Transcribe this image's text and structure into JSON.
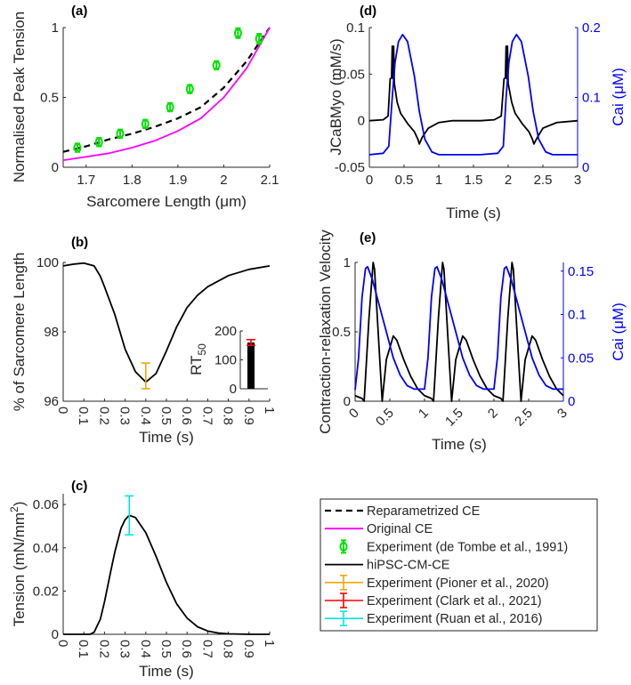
{
  "chart_data": [
    {
      "panel": "(a)",
      "type": "line",
      "xlabel": "Sarcomere Length (μm)",
      "ylabel": "Normalised Peak Tension",
      "xlim": [
        1.65,
        2.1
      ],
      "ylim": [
        0,
        1
      ],
      "xticks": [
        "1.7",
        "1.8",
        "1.9",
        "2",
        "2.1"
      ],
      "xtickvals": [
        1.7,
        1.8,
        1.9,
        2.0,
        2.1
      ],
      "yticks": [
        "0",
        "0.5",
        "1"
      ],
      "ytickvals": [
        0,
        0.5,
        1
      ],
      "series": [
        {
          "name": "Reparametrized CE",
          "color": "#000000",
          "style": "dashed",
          "x": [
            1.65,
            1.7,
            1.75,
            1.8,
            1.85,
            1.9,
            1.95,
            2.0,
            2.05,
            2.1
          ],
          "y": [
            0.11,
            0.15,
            0.2,
            0.24,
            0.29,
            0.35,
            0.43,
            0.57,
            0.76,
            1.0
          ]
        },
        {
          "name": "Original CE",
          "color": "#ff00ff",
          "style": "solid",
          "x": [
            1.65,
            1.7,
            1.75,
            1.8,
            1.85,
            1.9,
            1.95,
            2.0,
            2.05,
            2.1
          ],
          "y": [
            0.05,
            0.075,
            0.1,
            0.14,
            0.19,
            0.26,
            0.35,
            0.5,
            0.71,
            1.0
          ]
        },
        {
          "name": "Experiment (de Tombe et al., 1991)",
          "color": "#00e000",
          "style": "marker",
          "x": [
            1.681,
            1.728,
            1.774,
            1.829,
            1.883,
            1.926,
            1.984,
            2.031,
            2.077
          ],
          "y": [
            0.14,
            0.18,
            0.24,
            0.31,
            0.43,
            0.56,
            0.73,
            0.96,
            0.92
          ],
          "err": [
            0.03,
            0.03,
            0.03,
            0.03,
            0.03,
            0.03,
            0.03,
            0.035,
            0.035
          ]
        }
      ]
    },
    {
      "panel": "(b)",
      "type": "line",
      "xlabel": "Time (s)",
      "ylabel": "% of Sarcomere Length",
      "xlim": [
        0,
        1
      ],
      "ylim": [
        96,
        100
      ],
      "xticks": [
        "0",
        "0.1",
        "0.2",
        "0.3",
        "0.4",
        "0.5",
        "0.6",
        "0.7",
        "0.8",
        "0.9",
        "1"
      ],
      "xtickvals": [
        0,
        0.1,
        0.2,
        0.3,
        0.4,
        0.5,
        0.6,
        0.7,
        0.8,
        0.9,
        1
      ],
      "yticks": [
        "96",
        "98",
        "100"
      ],
      "ytickvals": [
        96,
        98,
        100
      ],
      "series": [
        {
          "name": "hiPSC-CM-CE",
          "color": "#000000",
          "style": "solid",
          "x": [
            0,
            0.05,
            0.1,
            0.15,
            0.18,
            0.2,
            0.25,
            0.3,
            0.35,
            0.4,
            0.45,
            0.5,
            0.55,
            0.6,
            0.65,
            0.7,
            0.8,
            0.9,
            1.0
          ],
          "y": [
            99.9,
            99.95,
            99.98,
            99.9,
            99.6,
            99.3,
            98.5,
            97.5,
            96.85,
            96.55,
            96.8,
            97.45,
            98.15,
            98.7,
            99.05,
            99.3,
            99.62,
            99.8,
            99.9
          ]
        },
        {
          "name": "Experiment (Pioner et al., 2020)",
          "color": "#f0a800",
          "style": "errorbar",
          "x": [
            0.4
          ],
          "y": [
            96.7
          ],
          "lo": [
            96.36
          ],
          "hi": [
            97.1
          ]
        }
      ],
      "inset": {
        "type": "bar",
        "ylabel": "RT",
        "ylabel_sub": "50",
        "ylim": [
          0,
          200
        ],
        "yticks": [
          "0",
          "100",
          "200"
        ],
        "ytickvals": [
          0,
          100,
          200
        ],
        "value": 160,
        "lo": 150,
        "hi": 170,
        "bar_color": "#000000",
        "err_color": "#ff0000"
      }
    },
    {
      "panel": "(c)",
      "type": "line",
      "xlabel": "Time (s)",
      "ylabel": "Tension (mN/mm",
      "ylabel_sup": "2",
      "ylabel_end": ")",
      "xlim": [
        0,
        1
      ],
      "ylim": [
        0,
        0.065
      ],
      "xticks": [
        "0",
        "0.1",
        "0.2",
        "0.3",
        "0.4",
        "0.5",
        "0.6",
        "0.7",
        "0.8",
        "0.9",
        "1"
      ],
      "xtickvals": [
        0,
        0.1,
        0.2,
        0.3,
        0.4,
        0.5,
        0.6,
        0.7,
        0.8,
        0.9,
        1
      ],
      "yticks": [
        "0",
        "0.02",
        "0.04",
        "0.06"
      ],
      "ytickvals": [
        0,
        0.02,
        0.04,
        0.06
      ],
      "series": [
        {
          "name": "hiPSC-CM-CE",
          "color": "#000000",
          "style": "solid",
          "x": [
            0,
            0.13,
            0.15,
            0.18,
            0.2,
            0.23,
            0.25,
            0.28,
            0.3,
            0.32,
            0.35,
            0.4,
            0.45,
            0.5,
            0.55,
            0.6,
            0.65,
            0.7,
            0.75,
            0.8,
            0.9,
            1.0
          ],
          "y": [
            0,
            0,
            0.001,
            0.007,
            0.015,
            0.029,
            0.038,
            0.049,
            0.053,
            0.055,
            0.054,
            0.047,
            0.036,
            0.024,
            0.014,
            0.0075,
            0.0035,
            0.0015,
            0.0006,
            0.0002,
            0,
            0
          ]
        },
        {
          "name": "Experiment (Ruan et al., 2016)",
          "color": "#00e8e8",
          "style": "errorbar",
          "x": [
            0.32
          ],
          "y": [
            0.055
          ],
          "lo": [
            0.046
          ],
          "hi": [
            0.064
          ]
        }
      ]
    },
    {
      "panel": "(d)",
      "type": "line",
      "xlabel": "Time (s)",
      "ylabel": "JCaBMyo (mM/s)",
      "ylabel_right": "Cai (μM)",
      "xlim": [
        0,
        3
      ],
      "ylim": [
        -0.05,
        0.1
      ],
      "ylim_right": [
        0,
        0.2
      ],
      "xticks": [
        "0",
        "0.5",
        "1",
        "1.5",
        "2",
        "2.5",
        "3"
      ],
      "xtickvals": [
        0,
        0.5,
        1,
        1.5,
        2,
        2.5,
        3
      ],
      "yticks": [
        "-0.05",
        "0",
        "0.05",
        "0.1"
      ],
      "ytickvals": [
        -0.05,
        0,
        0.05,
        0.1
      ],
      "yticks_right": [
        "0",
        "0.1",
        "0.2"
      ],
      "ytickvals_right": [
        0,
        0.1,
        0.2
      ],
      "series": [
        {
          "name": "JCaBMyo",
          "color": "#000000",
          "style": "solid",
          "axis": "left",
          "x": [
            0,
            0.2,
            0.27,
            0.3,
            0.32,
            0.33,
            0.34,
            0.35,
            0.36,
            0.4,
            0.45,
            0.55,
            0.65,
            0.7,
            0.72,
            0.76,
            0.85,
            1.0,
            1.2,
            1.6,
            1.8,
            1.9,
            1.94,
            1.96,
            1.97,
            1.98,
            1.99,
            2.0,
            2.05,
            2.1,
            2.2,
            2.3,
            2.35,
            2.37,
            2.42,
            2.5,
            2.7,
            3.0
          ],
          "y": [
            0,
            0.001,
            0.005,
            0.045,
            0.046,
            0.08,
            0.045,
            0.08,
            0.04,
            0.02,
            0.008,
            -0.003,
            -0.012,
            -0.02,
            -0.025,
            -0.018,
            -0.008,
            -0.002,
            0,
            0,
            0.001,
            0.005,
            0.045,
            0.046,
            0.08,
            0.045,
            0.08,
            0.04,
            0.02,
            0.008,
            -0.003,
            -0.012,
            -0.02,
            -0.025,
            -0.018,
            -0.008,
            -0.002,
            0
          ]
        },
        {
          "name": "Cai",
          "color": "#0000ff",
          "style": "solid",
          "axis": "right",
          "x": [
            0,
            0.2,
            0.28,
            0.33,
            0.37,
            0.42,
            0.48,
            0.55,
            0.65,
            0.72,
            0.8,
            0.9,
            1.0,
            1.6,
            1.85,
            1.93,
            1.97,
            2.01,
            2.06,
            2.12,
            2.19,
            2.29,
            2.36,
            2.44,
            2.54,
            2.64,
            3.0
          ],
          "y": [
            0.018,
            0.02,
            0.03,
            0.1,
            0.15,
            0.18,
            0.19,
            0.18,
            0.13,
            0.08,
            0.04,
            0.022,
            0.018,
            0.018,
            0.02,
            0.03,
            0.1,
            0.15,
            0.18,
            0.19,
            0.18,
            0.13,
            0.08,
            0.04,
            0.022,
            0.018,
            0.018
          ]
        }
      ]
    },
    {
      "panel": "(e)",
      "type": "line",
      "xlabel": "Time (s)",
      "ylabel": "Contraction-relaxation Velocity",
      "ylabel_right": "Cai (μM)",
      "xlim": [
        0,
        3
      ],
      "ylim": [
        0,
        1
      ],
      "ylim_right": [
        0,
        0.16
      ],
      "xticks": [
        "0",
        "0.5",
        "1",
        "1.5",
        "2",
        "2.5",
        "3"
      ],
      "xtickvals": [
        0,
        0.5,
        1,
        1.5,
        2,
        2.5,
        3
      ],
      "yticks": [
        "0",
        "0.5",
        "1"
      ],
      "ytickvals": [
        0,
        0.5,
        1
      ],
      "yticks_right": [
        "0",
        "0.05",
        "0.1",
        "0.15"
      ],
      "ytickvals_right": [
        0,
        0.05,
        0.1,
        0.15
      ],
      "series": [
        {
          "name": "Velocity",
          "color": "#000000",
          "style": "solid",
          "axis": "left",
          "x": [
            0,
            0.1,
            0.13,
            0.2,
            0.26,
            0.28,
            0.39,
            0.45,
            0.55,
            0.6,
            0.7,
            0.8,
            0.9,
            1.0,
            1.1,
            1.13,
            1.2,
            1.26,
            1.28,
            1.39,
            1.45,
            1.55,
            1.6,
            1.7,
            1.8,
            1.9,
            2.0,
            2.1,
            2.13,
            2.2,
            2.26,
            2.28,
            2.39,
            2.45,
            2.55,
            2.6,
            2.7,
            2.8,
            2.9,
            3.0
          ],
          "y": [
            0.04,
            0.02,
            0,
            0.6,
            1,
            0.95,
            0,
            0.3,
            0.47,
            0.44,
            0.3,
            0.18,
            0.09,
            0.04,
            0.02,
            0,
            0.6,
            1,
            0.95,
            0,
            0.3,
            0.47,
            0.44,
            0.3,
            0.18,
            0.09,
            0.04,
            0.02,
            0,
            0.6,
            1,
            0.95,
            0,
            0.3,
            0.47,
            0.44,
            0.3,
            0.18,
            0.09,
            0.04
          ]
        },
        {
          "name": "Cai",
          "color": "#0000ff",
          "style": "solid",
          "axis": "right",
          "x": [
            0,
            0.05,
            0.1,
            0.15,
            0.18,
            0.25,
            0.35,
            0.45,
            0.55,
            0.65,
            0.75,
            0.85,
            1.0,
            1.05,
            1.1,
            1.15,
            1.18,
            1.25,
            1.35,
            1.45,
            1.55,
            1.65,
            1.75,
            1.85,
            2.0,
            2.05,
            2.1,
            2.15,
            2.18,
            2.25,
            2.35,
            2.45,
            2.55,
            2.65,
            2.75,
            2.85,
            3.0
          ],
          "y": [
            0.013,
            0.05,
            0.12,
            0.153,
            0.155,
            0.14,
            0.11,
            0.08,
            0.05,
            0.03,
            0.018,
            0.014,
            0.014,
            0.05,
            0.12,
            0.153,
            0.155,
            0.14,
            0.11,
            0.08,
            0.05,
            0.03,
            0.018,
            0.014,
            0.014,
            0.05,
            0.12,
            0.153,
            0.155,
            0.14,
            0.11,
            0.08,
            0.05,
            0.03,
            0.018,
            0.014,
            0.014
          ]
        }
      ]
    }
  ],
  "legend": {
    "entries": [
      {
        "label": "Reparametrized CE",
        "color": "#000000",
        "style": "dashed"
      },
      {
        "label": "Original CE",
        "color": "#ff00ff",
        "style": "solid"
      },
      {
        "label": "Experiment (de Tombe et al., 1991)",
        "color": "#00e000",
        "style": "marker"
      },
      {
        "label": "hiPSC-CM-CE",
        "color": "#000000",
        "style": "solid"
      },
      {
        "label": "Experiment (Pioner et al., 2020)",
        "color": "#f0a800",
        "style": "errorbar"
      },
      {
        "label": "Experiment (Clark et al., 2021)",
        "color": "#ff0000",
        "style": "errorbar"
      },
      {
        "label": "Experiment (Ruan et al., 2016)",
        "color": "#00e8e8",
        "style": "errorbar"
      }
    ]
  }
}
